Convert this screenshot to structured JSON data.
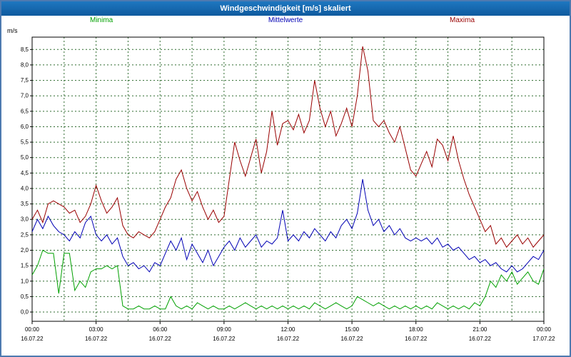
{
  "window": {
    "title": "Windgeschwindigkeit [m/s] skaliert"
  },
  "chart_data": {
    "type": "line",
    "title": "Windgeschwindigkeit [m/s] skaliert",
    "ylabel": "m/s",
    "xlabel": "",
    "grid": {
      "color": "#2f6b2f",
      "dash": "2 3",
      "visible": true
    },
    "y_axis": {
      "min": 0.0,
      "max": 8.5,
      "step": 0.5,
      "plot_min": -0.3,
      "plot_max": 8.9,
      "decimal_separator": ","
    },
    "x_axis": {
      "hours": 24,
      "label_step_hours": 3,
      "grid_step_hours": 1.5,
      "tick_labels": [
        "00:00",
        "03:00",
        "06:00",
        "09:00",
        "12:00",
        "15:00",
        "18:00",
        "21:00",
        "00:00"
      ],
      "date_labels": [
        "16.07.22",
        "16.07.22",
        "16.07.22",
        "16.07.22",
        "16.07.22",
        "16.07.22",
        "16.07.22",
        "16.07.22",
        "17.07.22"
      ]
    },
    "legend": [
      {
        "name": "Minima",
        "color": "#00a000"
      },
      {
        "name": "Mittelwerte",
        "color": "#0000b4"
      },
      {
        "name": "Maxima",
        "color": "#990000"
      }
    ],
    "sample_interval_hours": 0.25,
    "series": [
      {
        "name": "Minima",
        "color": "#00a000",
        "values": [
          1.2,
          1.5,
          2.0,
          1.9,
          1.9,
          0.6,
          1.9,
          1.9,
          0.7,
          1.0,
          0.8,
          1.3,
          1.4,
          1.4,
          1.5,
          1.4,
          1.5,
          0.2,
          0.1,
          0.1,
          0.2,
          0.1,
          0.1,
          0.2,
          0.1,
          0.1,
          0.5,
          0.2,
          0.1,
          0.2,
          0.1,
          0.3,
          0.2,
          0.1,
          0.2,
          0.1,
          0.1,
          0.2,
          0.1,
          0.2,
          0.3,
          0.2,
          0.1,
          0.2,
          0.1,
          0.2,
          0.1,
          0.2,
          0.1,
          0.2,
          0.1,
          0.2,
          0.1,
          0.3,
          0.2,
          0.1,
          0.2,
          0.3,
          0.2,
          0.1,
          0.2,
          0.5,
          0.4,
          0.3,
          0.2,
          0.3,
          0.2,
          0.1,
          0.2,
          0.1,
          0.2,
          0.1,
          0.2,
          0.1,
          0.2,
          0.1,
          0.3,
          0.2,
          0.1,
          0.2,
          0.1,
          0.2,
          0.1,
          0.3,
          0.2,
          0.5,
          1.0,
          0.8,
          1.2,
          1.0,
          1.3,
          0.9,
          1.1,
          1.3,
          1.0,
          0.9,
          1.4
        ]
      },
      {
        "name": "Mittelwerte",
        "color": "#0000b4",
        "values": [
          2.6,
          3.0,
          2.7,
          3.1,
          2.8,
          2.6,
          2.5,
          2.3,
          2.6,
          2.4,
          2.9,
          3.1,
          2.5,
          2.3,
          2.5,
          2.2,
          2.4,
          1.8,
          1.5,
          1.6,
          1.4,
          1.5,
          1.3,
          1.6,
          1.5,
          1.9,
          2.3,
          2.0,
          2.4,
          1.7,
          2.2,
          1.9,
          1.6,
          2.0,
          1.5,
          1.8,
          2.1,
          2.3,
          2.0,
          2.4,
          2.1,
          2.3,
          2.5,
          2.1,
          2.3,
          2.2,
          2.4,
          3.3,
          2.3,
          2.5,
          2.3,
          2.6,
          2.4,
          2.7,
          2.5,
          2.3,
          2.6,
          2.4,
          2.8,
          3.0,
          2.7,
          3.2,
          4.3,
          3.3,
          2.8,
          3.0,
          2.6,
          2.8,
          2.5,
          2.7,
          2.4,
          2.3,
          2.4,
          2.3,
          2.4,
          2.2,
          2.4,
          2.1,
          2.2,
          2.0,
          2.1,
          1.9,
          1.7,
          1.8,
          1.6,
          1.7,
          1.5,
          1.6,
          1.4,
          1.3,
          1.5,
          1.3,
          1.4,
          1.6,
          1.8,
          1.7,
          2.0
        ]
      },
      {
        "name": "Maxima",
        "color": "#990000",
        "values": [
          3.0,
          3.3,
          2.9,
          3.5,
          3.6,
          3.5,
          3.4,
          3.2,
          3.3,
          2.9,
          3.1,
          3.5,
          4.1,
          3.6,
          3.2,
          3.4,
          3.7,
          2.8,
          2.5,
          2.4,
          2.6,
          2.5,
          2.4,
          2.6,
          3.0,
          3.4,
          3.7,
          4.3,
          4.6,
          4.0,
          3.6,
          3.9,
          3.4,
          3.0,
          3.3,
          2.9,
          3.1,
          4.3,
          5.5,
          4.9,
          4.4,
          5.0,
          5.6,
          4.5,
          5.2,
          6.5,
          5.4,
          6.1,
          6.2,
          5.9,
          6.4,
          5.8,
          6.2,
          7.5,
          6.6,
          6.0,
          6.5,
          5.7,
          6.1,
          6.6,
          6.0,
          7.0,
          8.6,
          7.8,
          6.2,
          6.0,
          6.2,
          5.8,
          5.5,
          6.0,
          5.3,
          4.6,
          4.4,
          4.8,
          5.2,
          4.7,
          5.6,
          5.4,
          4.9,
          5.7,
          4.9,
          4.3,
          3.8,
          3.4,
          3.0,
          2.6,
          2.8,
          2.2,
          2.4,
          2.1,
          2.3,
          2.5,
          2.2,
          2.4,
          2.1,
          2.3,
          2.5
        ]
      }
    ]
  }
}
